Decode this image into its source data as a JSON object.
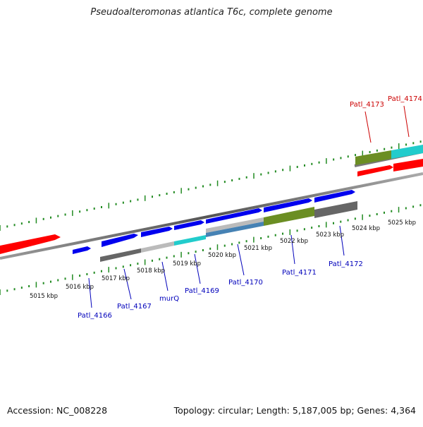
{
  "title": "Pseudoalteromonas atlantica T6c, complete genome",
  "accession": "Accession: NC_008228",
  "topology": "Topology: circular; Length: 5,187,005 bp; Genes: 4,364",
  "colors": {
    "blue_gene": "#0000ee",
    "red_gene": "#ff0000",
    "gray_dark": "#666666",
    "gray_light": "#bbbbbb",
    "cyan": "#22cccc",
    "olive": "#6b8e23",
    "steel": "#4682b4",
    "tick_green": "#228b22",
    "label_blue": "#0000bb",
    "label_red": "#cc0000"
  },
  "scale_labels": [
    "5015 kbp",
    "5016 kbp",
    "5017 kbp",
    "5018 kbp",
    "5019 kbp",
    "5020 kbp",
    "5021 kbp",
    "5022 kbp",
    "5023 kbp",
    "5024 kbp",
    "5025 kbp"
  ],
  "gene_labels_blue": [
    "Patl_4166",
    "Patl_4167",
    "murQ",
    "Patl_4169",
    "Patl_4170",
    "Patl_4171",
    "Patl_4172"
  ],
  "gene_labels_red": [
    "Patl_4173",
    "Patl_4174"
  ]
}
